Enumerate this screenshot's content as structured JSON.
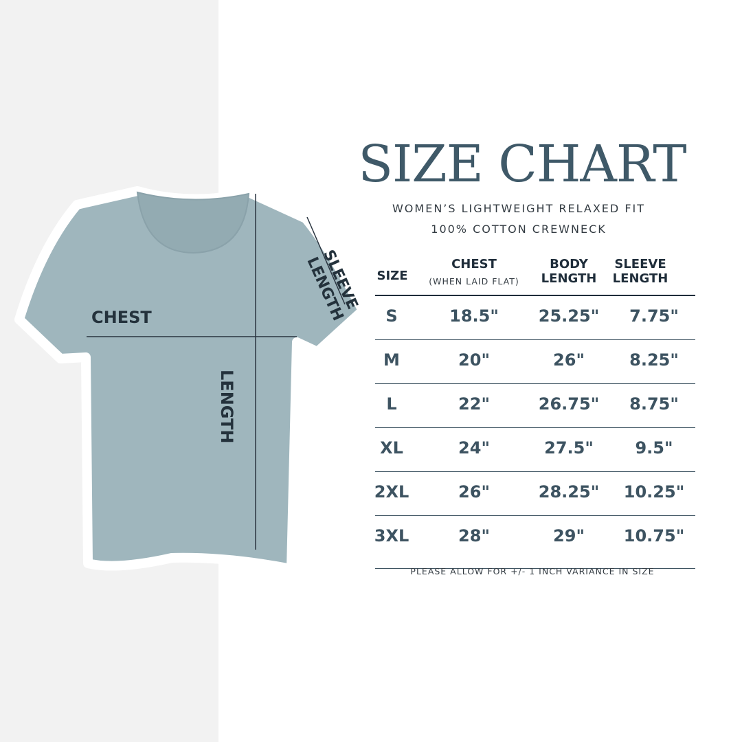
{
  "title": "SIZE CHART",
  "subtitle_line1": "WOMEN’S LIGHTWEIGHT RELAXED FIT",
  "subtitle_line2": "100% COTTON CREWNECK",
  "diagram": {
    "chest": "CHEST",
    "length": "LENGTH",
    "sleeve_line1": "SLEEVE",
    "sleeve_line2": "LENGTH",
    "shirt_color": "#9fb6bd"
  },
  "table": {
    "headers": {
      "size": "SIZE",
      "chest": "CHEST",
      "chest_note": "(WHEN LAID FLAT)",
      "body1": "BODY",
      "body2": "LENGTH",
      "sleeve1": "SLEEVE",
      "sleeve2": "LENGTH"
    },
    "rows": [
      [
        "S",
        "18.5\"",
        "25.25\"",
        "7.75\""
      ],
      [
        "M",
        "20\"",
        "26\"",
        "8.25\""
      ],
      [
        "L",
        "22\"",
        "26.75\"",
        "8.75\""
      ],
      [
        "XL",
        "24\"",
        "27.5\"",
        "9.5\""
      ],
      [
        "2XL",
        "26\"",
        "28.25\"",
        "10.25\""
      ],
      [
        "3XL",
        "28\"",
        "29\"",
        "10.75\""
      ]
    ]
  },
  "note": "PLEASE ALLOW FOR +/- 1 INCH VARIANCE IN SIZE",
  "colors": {
    "title": "#3f5968",
    "values": "#3d5361",
    "left_bg": "#f2f2f2"
  }
}
